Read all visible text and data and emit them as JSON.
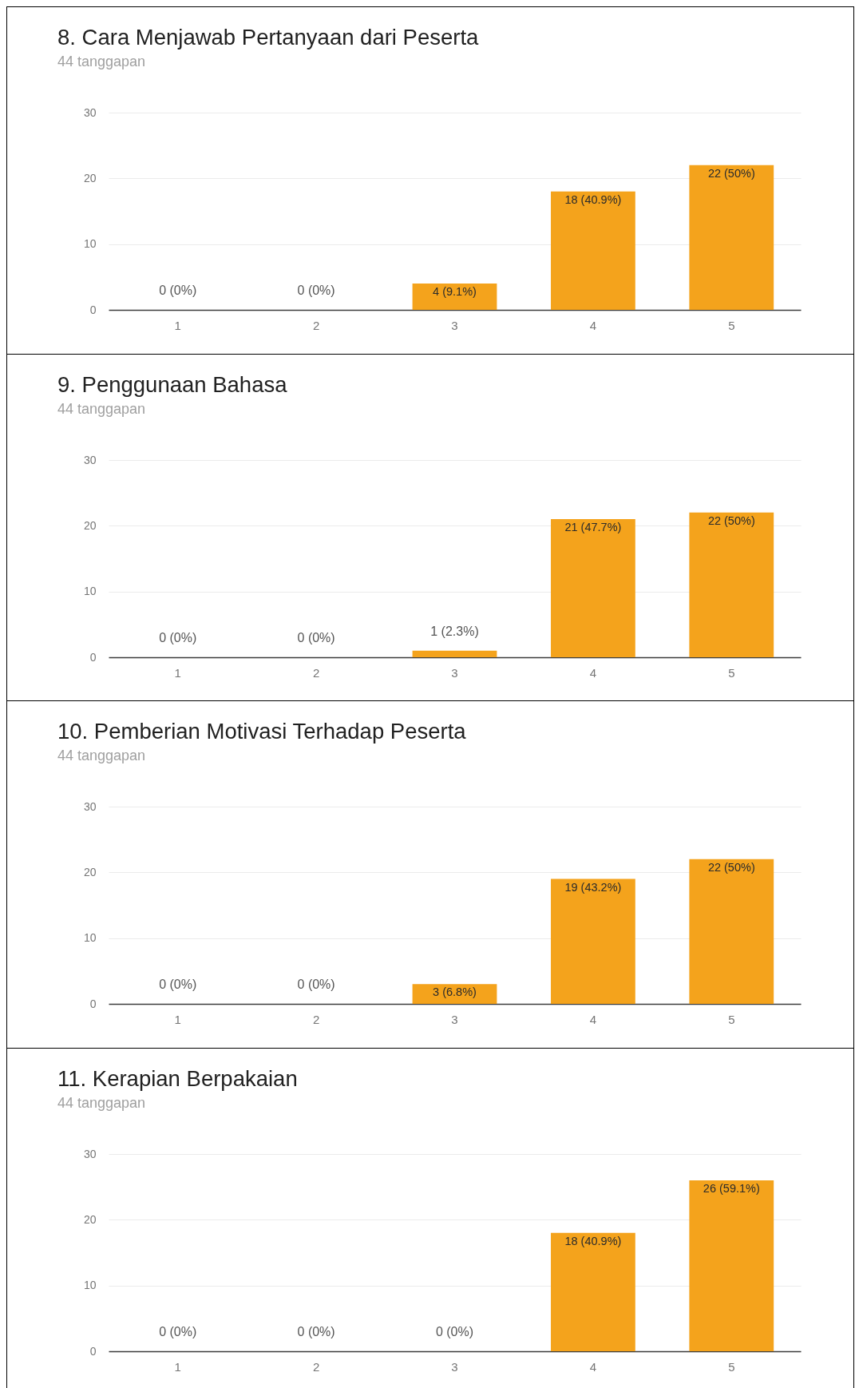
{
  "chart_data": [
    {
      "type": "bar",
      "title": "8. Cara Menjawab Pertanyaan dari Peserta",
      "subtitle": "44 tanggapan",
      "categories": [
        "1",
        "2",
        "3",
        "4",
        "5"
      ],
      "values": [
        0,
        0,
        4,
        18,
        22
      ],
      "value_labels": [
        "0 (0%)",
        "0 (0%)",
        "4 (9.1%)",
        "18 (40.9%)",
        "22 (50%)"
      ],
      "color": "#f4a31c",
      "ylim": [
        0,
        30
      ],
      "yticks": [
        0,
        10,
        20,
        30
      ],
      "grid": "y"
    },
    {
      "type": "bar",
      "title": "9. Penggunaan Bahasa",
      "subtitle": "44 tanggapan",
      "categories": [
        "1",
        "2",
        "3",
        "4",
        "5"
      ],
      "values": [
        0,
        0,
        1,
        21,
        22
      ],
      "value_labels": [
        "0 (0%)",
        "0 (0%)",
        "1 (2.3%)",
        "21 (47.7%)",
        "22 (50%)"
      ],
      "color": "#f4a31c",
      "ylim": [
        0,
        30
      ],
      "yticks": [
        0,
        10,
        20,
        30
      ],
      "grid": "y"
    },
    {
      "type": "bar",
      "title": "10. Pemberian Motivasi Terhadap Peserta",
      "subtitle": "44 tanggapan",
      "categories": [
        "1",
        "2",
        "3",
        "4",
        "5"
      ],
      "values": [
        0,
        0,
        3,
        19,
        22
      ],
      "value_labels": [
        "0 (0%)",
        "0 (0%)",
        "3 (6.8%)",
        "19 (43.2%)",
        "22 (50%)"
      ],
      "color": "#f4a31c",
      "ylim": [
        0,
        30
      ],
      "yticks": [
        0,
        10,
        20,
        30
      ],
      "grid": "y"
    },
    {
      "type": "bar",
      "title": "11. Kerapian Berpakaian",
      "subtitle": "44 tanggapan",
      "categories": [
        "1",
        "2",
        "3",
        "4",
        "5"
      ],
      "values": [
        0,
        0,
        0,
        18,
        26
      ],
      "value_labels": [
        "0 (0%)",
        "0 (0%)",
        "0 (0%)",
        "18 (40.9%)",
        "26 (59.1%)"
      ],
      "color": "#f4a31c",
      "ylim": [
        0,
        30
      ],
      "yticks": [
        0,
        10,
        20,
        30
      ],
      "grid": "y"
    }
  ]
}
